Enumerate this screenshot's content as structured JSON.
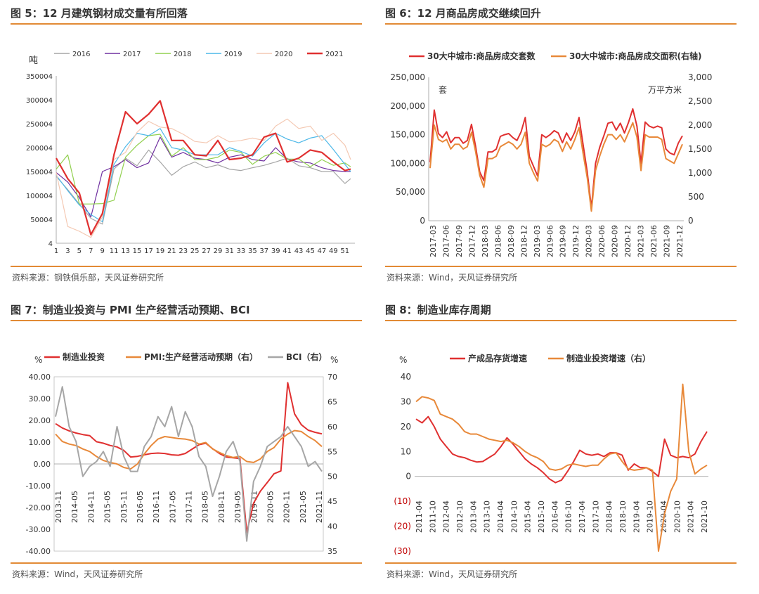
{
  "charts": [
    {
      "title": "图 5：12 月建筑钢材成交量有所回落",
      "source": "资料来源：钢铁俱乐部，天风证券研究所"
    },
    {
      "title": "图 6：12 月商品房成交继续回升",
      "source": "资料来源：Wind，天风证券研究所"
    },
    {
      "title": "图 7：制造业投资与 PMI 生产经营活动预期、BCI",
      "source": "资料来源：Wind，天风证券研究所"
    },
    {
      "title": "图 8：制造业库存周期",
      "source": "资料来源：Wind，天风证券研究所"
    }
  ],
  "chart_data": [
    {
      "type": "line",
      "ylabel": "吨",
      "ylim": [
        4,
        350004
      ],
      "yticks": [
        "350004",
        "300004",
        "250004",
        "200004",
        "150004",
        "100004",
        "50004",
        "4"
      ],
      "xticks": [
        "1",
        "3",
        "5",
        "7",
        "9",
        "11",
        "13",
        "15",
        "17",
        "19",
        "21",
        "23",
        "25",
        "27",
        "29",
        "31",
        "33",
        "35",
        "37",
        "39",
        "41",
        "43",
        "45",
        "47",
        "49",
        "51"
      ],
      "x": [
        1,
        3,
        5,
        7,
        9,
        11,
        13,
        15,
        17,
        19,
        21,
        23,
        25,
        27,
        29,
        31,
        33,
        35,
        37,
        39,
        41,
        43,
        45,
        47,
        49,
        51,
        52
      ],
      "series": [
        {
          "name": "2016",
          "color": "#a6a6a6",
          "values": [
            140000,
            112000,
            82000,
            52000,
            40000,
            155000,
            178000,
            162000,
            195000,
            170000,
            142000,
            160000,
            170000,
            158000,
            164000,
            155000,
            152000,
            158000,
            163000,
            170000,
            178000,
            162000,
            158000,
            150000,
            150000,
            125000,
            135000
          ]
        },
        {
          "name": "2017",
          "color": "#7030a0",
          "values": [
            148000,
            128000,
            95000,
            55000,
            150000,
            160000,
            175000,
            158000,
            168000,
            222000,
            180000,
            190000,
            178000,
            175000,
            168000,
            180000,
            185000,
            175000,
            172000,
            200000,
            176000,
            170000,
            168000,
            158000,
            152000,
            150000,
            150000
          ]
        },
        {
          "name": "2018",
          "color": "#92d050",
          "values": [
            155000,
            185000,
            82000,
            82000,
            83000,
            90000,
            180000,
            205000,
            225000,
            228000,
            182000,
            200000,
            175000,
            175000,
            180000,
            195000,
            190000,
            165000,
            182000,
            190000,
            176000,
            176000,
            160000,
            175000,
            163000,
            168000,
            160000
          ]
        },
        {
          "name": "2019",
          "color": "#4db8e8",
          "values": [
            142000,
            110000,
            80000,
            60000,
            45000,
            165000,
            202000,
            230000,
            225000,
            240000,
            200000,
            195000,
            185000,
            185000,
            185000,
            200000,
            192000,
            182000,
            210000,
            230000,
            218000,
            210000,
            220000,
            225000,
            196000,
            165000,
            150000
          ]
        },
        {
          "name": "2020",
          "color": "#f4c9b3",
          "values": [
            148000,
            35000,
            25000,
            12000,
            55000,
            175000,
            190000,
            232000,
            255000,
            243000,
            240000,
            228000,
            213000,
            210000,
            225000,
            212000,
            215000,
            220000,
            215000,
            245000,
            260000,
            240000,
            245000,
            215000,
            230000,
            205000,
            175000
          ]
        },
        {
          "name": "2021",
          "color": "#e03030",
          "values": [
            178000,
            135000,
            105000,
            18000,
            62000,
            185000,
            275000,
            250000,
            270000,
            298000,
            215000,
            215000,
            185000,
            183000,
            215000,
            175000,
            178000,
            185000,
            222000,
            230000,
            170000,
            178000,
            195000,
            190000,
            170000,
            152000,
            155000
          ]
        }
      ]
    },
    {
      "type": "line",
      "ylabel": "套",
      "y2label": "万平方米",
      "ylim": [
        0,
        250000
      ],
      "y2lim": [
        0,
        3000
      ],
      "yticks": [
        "250,000",
        "200,000",
        "150,000",
        "100,000",
        "50,000",
        "0"
      ],
      "y2ticks": [
        "3,000",
        "2,500",
        "2,000",
        "1,500",
        "1,000",
        "500",
        "0"
      ],
      "xticks": [
        "2017-03",
        "2017-06",
        "2017-09",
        "2017-12",
        "2018-03",
        "2018-06",
        "2018-09",
        "2018-12",
        "2019-03",
        "2019-06",
        "2019-09",
        "2019-12",
        "2020-03",
        "2020-06",
        "2020-09",
        "2020-12",
        "2021-03",
        "2021-06",
        "2021-09",
        "2021-12"
      ],
      "series": [
        {
          "name": "30大中城市:商品房成交套数",
          "color": "#e03030",
          "axis": "left",
          "values": [
            102000,
            193000,
            152000,
            145000,
            155000,
            136000,
            145000,
            145000,
            135000,
            140000,
            168000,
            130000,
            85000,
            70000,
            120000,
            120000,
            125000,
            147000,
            150000,
            152000,
            145000,
            140000,
            155000,
            180000,
            112000,
            95000,
            78000,
            150000,
            145000,
            150000,
            157000,
            153000,
            136000,
            153000,
            140000,
            155000,
            180000,
            132000,
            85000,
            22000,
            100000,
            128000,
            148000,
            170000,
            172000,
            158000,
            170000,
            153000,
            172000,
            195000,
            165000,
            100000,
            172000,
            165000,
            162000,
            165000,
            162000,
            125000,
            118000,
            115000,
            135000,
            148000
          ]
        },
        {
          "name": "30大中城市:商品房成交面积(右轴)",
          "color": "#e8893a",
          "axis": "right",
          "values": [
            1100,
            2000,
            1700,
            1650,
            1700,
            1500,
            1600,
            1600,
            1500,
            1550,
            1850,
            1450,
            950,
            700,
            1300,
            1300,
            1350,
            1550,
            1600,
            1650,
            1600,
            1500,
            1600,
            1850,
            1200,
            1000,
            830,
            1600,
            1550,
            1600,
            1700,
            1650,
            1450,
            1650,
            1500,
            1700,
            1950,
            1400,
            900,
            200,
            1050,
            1350,
            1600,
            1800,
            1800,
            1700,
            1800,
            1650,
            1850,
            2050,
            1750,
            1050,
            1800,
            1750,
            1750,
            1750,
            1700,
            1300,
            1250,
            1200,
            1400,
            1600
          ]
        }
      ]
    },
    {
      "type": "line",
      "ylabel": "%",
      "y2label": "%",
      "ylim": [
        -40,
        40
      ],
      "y2lim": [
        35,
        70
      ],
      "yticks": [
        "40.00",
        "30.00",
        "20.00",
        "10.00",
        "0.00",
        "-10.00",
        "-20.00",
        "-30.00",
        "-40.00"
      ],
      "y2ticks": [
        "70",
        "65",
        "60",
        "55",
        "50",
        "45",
        "40",
        "35"
      ],
      "xticks": [
        "2013-11",
        "2014-05",
        "2014-11",
        "2015-05",
        "2015-11",
        "2016-05",
        "2016-11",
        "2017-05",
        "2017-11",
        "2018-05",
        "2018-11",
        "2019-05",
        "2019-11",
        "2020-05",
        "2020-11",
        "2021-05",
        "2021-11"
      ],
      "series": [
        {
          "name": "制造业投资",
          "color": "#e03030",
          "axis": "left",
          "values": [
            18.5,
            16.5,
            15.2,
            14.2,
            13.5,
            13,
            10.2,
            9.5,
            8.5,
            7.8,
            6.2,
            3.2,
            3.5,
            4.2,
            4.8,
            5,
            4.8,
            4.2,
            4,
            4.8,
            6.8,
            8.8,
            9.5,
            7,
            4.8,
            3.2,
            2.8,
            2.5,
            -31.5,
            -18,
            -12.5,
            -8.5,
            -4.5,
            -3.2,
            37.3,
            23,
            18,
            15.5,
            14.5,
            13.8
          ]
        },
        {
          "name": "PMI:生产经营活动预期（右）",
          "color": "#e8893a",
          "axis": "right",
          "values": [
            58.5,
            57,
            56.5,
            56.2,
            55.5,
            55,
            54,
            53.2,
            52.8,
            52.5,
            51.8,
            51.5,
            52.5,
            54.5,
            56.2,
            57.5,
            58,
            57.8,
            57.6,
            57.5,
            57.2,
            56.5,
            56.8,
            55.5,
            54.8,
            54.2,
            53.8,
            54,
            53,
            52.8,
            53.5,
            55,
            55.8,
            57.5,
            58.5,
            59.2,
            59,
            58,
            57.2,
            56
          ]
        },
        {
          "name": "BCI（右）",
          "color": "#a6a6a6",
          "axis": "right",
          "values": [
            62,
            68,
            60,
            57,
            50,
            52,
            53,
            55,
            52,
            60,
            54,
            51,
            51,
            56,
            58,
            62,
            60,
            64,
            58,
            63,
            60,
            54,
            52,
            46,
            50,
            55,
            57,
            53,
            37,
            49,
            52,
            56,
            57,
            58,
            60,
            58,
            56,
            52,
            53,
            51
          ]
        }
      ]
    },
    {
      "type": "line",
      "ylabel": "%",
      "ylim": [
        -30,
        40
      ],
      "yticks": [
        "40",
        "30",
        "20",
        "10",
        "0",
        "(10)",
        "(20)",
        "(30)"
      ],
      "xticks": [
        "2011-04",
        "2011-10",
        "2012-04",
        "2012-10",
        "2013-04",
        "2013-10",
        "2014-04",
        "2014-10",
        "2015-04",
        "2015-10",
        "2016-04",
        "2016-10",
        "2017-04",
        "2017-10",
        "2018-04",
        "2018-10",
        "2019-04",
        "2019-10",
        "2020-04",
        "2020-10",
        "2021-04",
        "2021-10"
      ],
      "series": [
        {
          "name": "产成品存货增速",
          "color": "#e03030",
          "axis": "left",
          "values": [
            23,
            21.5,
            24,
            20,
            15,
            12,
            9,
            8,
            7.5,
            6.5,
            5.8,
            6,
            7.5,
            9,
            12,
            15.5,
            13,
            10,
            7,
            5,
            3.5,
            1.5,
            -1,
            -2.5,
            -1.5,
            2,
            6,
            10.5,
            9,
            8.5,
            9,
            8,
            9.5,
            9.5,
            8.5,
            2.5,
            5,
            3.5,
            3.5,
            2,
            0,
            15,
            8.5,
            7.5,
            8,
            7.5,
            9,
            14,
            18
          ]
        },
        {
          "name": "制造业投资增速（右）",
          "color": "#e8893a",
          "axis": "left",
          "values": [
            30,
            32,
            31.5,
            30.5,
            25,
            24,
            23,
            21,
            18,
            17,
            17,
            16,
            15,
            14.5,
            14,
            14.5,
            13.5,
            12,
            10,
            8.5,
            7.5,
            6,
            3,
            2.5,
            3,
            4.5,
            5,
            4.5,
            4,
            4.5,
            4.5,
            7,
            9,
            9.5,
            6,
            3,
            2.5,
            2.8,
            3.5,
            2.5,
            -30,
            -15,
            -6,
            -1,
            37,
            10,
            1,
            3,
            4.5
          ]
        }
      ]
    }
  ]
}
